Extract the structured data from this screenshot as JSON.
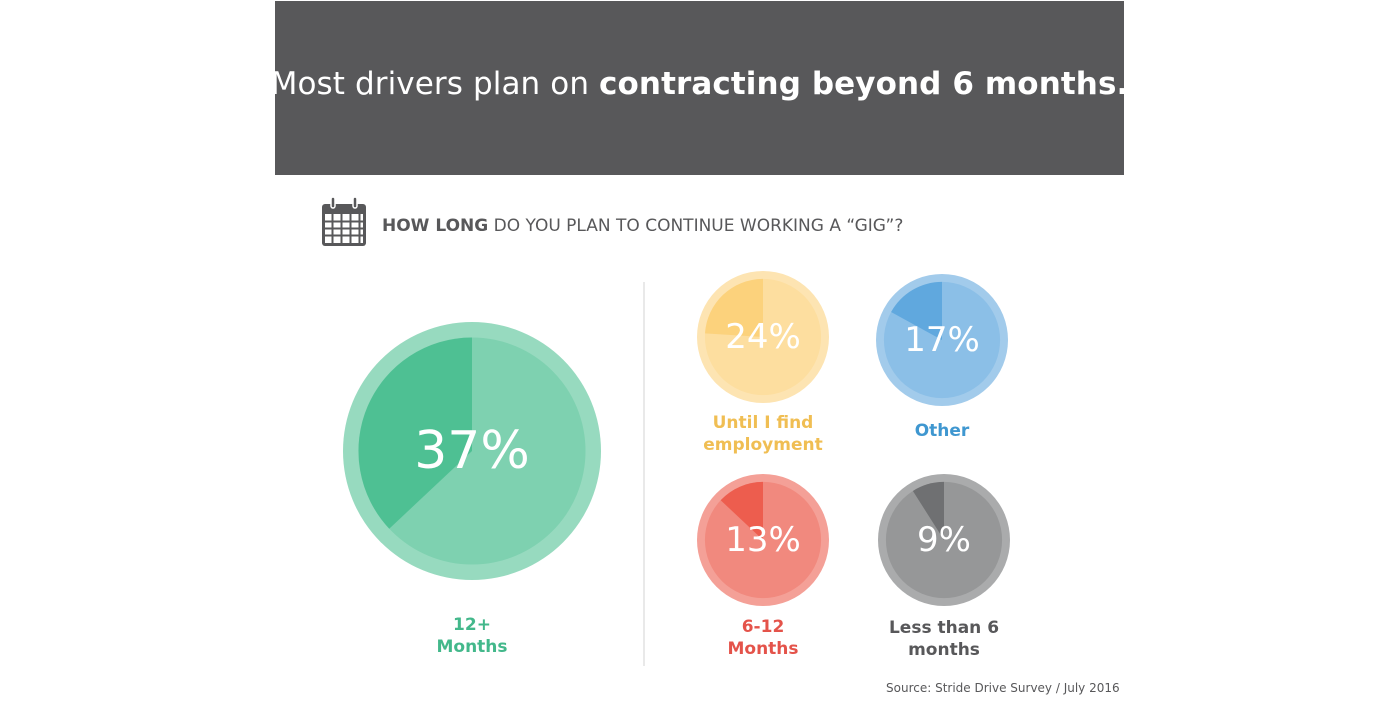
{
  "header": {
    "title_regular": "Most drivers plan on ",
    "title_bold": "contracting beyond 6 months."
  },
  "question": {
    "bold": "HOW LONG",
    "rest": " DO YOU PLAN TO CONTINUE WORKING A “GIG”?",
    "icon": "calendar-icon"
  },
  "chart_data": {
    "type": "pie",
    "title": "HOW LONG DO YOU PLAN TO CONTINUE WORKING A “GIG”?",
    "slices": [
      {
        "label": "12+ Months",
        "label_lines": [
          "12+",
          "Months"
        ],
        "value": 37,
        "display": "37%",
        "color": "#4cbf91"
      },
      {
        "label": "Until I find employment",
        "label_lines": [
          "Until I find",
          "employment"
        ],
        "value": 24,
        "display": "24%",
        "color": "#fcd17a"
      },
      {
        "label": "Other",
        "label_lines": [
          "Other"
        ],
        "value": 17,
        "display": "17%",
        "color": "#5ea6dd"
      },
      {
        "label": "6-12 Months",
        "label_lines": [
          "6-12",
          "Months"
        ],
        "value": 13,
        "display": "13%",
        "color": "#ec5b4c"
      },
      {
        "label": "Less than 6 months",
        "label_lines": [
          "Less than 6",
          "months"
        ],
        "value": 9,
        "display": "9%",
        "color": "#6d6e70"
      }
    ]
  },
  "colors": {
    "banner": "#58585a",
    "text_dark": "#58585a",
    "label_yellow": "#f0be53",
    "label_blue": "#3f97d0",
    "label_red": "#e4534a",
    "label_green": "#43b88b",
    "label_gray": "#58585a"
  },
  "source": "Source: Stride Drive Survey / July 2016"
}
